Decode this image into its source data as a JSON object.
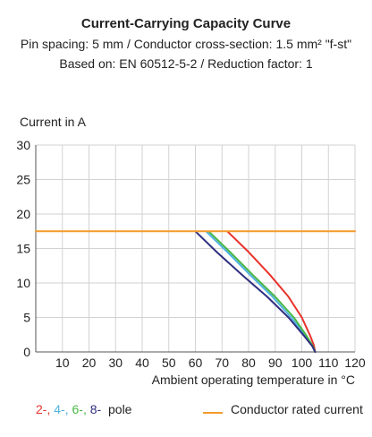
{
  "chart_data": {
    "type": "line",
    "title": "Current-Carrying Capacity Curve",
    "subtitle_1": "Pin spacing: 5 mm / Conductor cross-section: 1.5 mm² \"f-st\"",
    "subtitle_2": "Based on: EN 60512-5-2 / Reduction factor: 1",
    "ylabel": "Current in A",
    "xlabel": "Ambient operating temperature in °C",
    "xlim": [
      0,
      120
    ],
    "ylim": [
      0,
      30
    ],
    "xticks": [
      10,
      20,
      30,
      40,
      50,
      60,
      70,
      80,
      90,
      100,
      110,
      120
    ],
    "yticks": [
      0,
      5,
      10,
      15,
      20,
      25,
      30
    ],
    "grid": true,
    "series": [
      {
        "name": "2",
        "color": "#e8322b",
        "x": [
          72,
          80,
          88,
          95,
          100,
          103,
          104.5,
          105
        ],
        "y": [
          17.5,
          14.5,
          11.2,
          8.0,
          5.0,
          2.5,
          1.0,
          0
        ]
      },
      {
        "name": "4",
        "color": "#4fb3e0",
        "x": [
          64,
          72,
          81,
          89,
          96,
          101,
          104,
          105
        ],
        "y": [
          17.5,
          14.5,
          11.0,
          8.0,
          5.0,
          2.5,
          0.8,
          0
        ]
      },
      {
        "name": "6",
        "color": "#4cb845",
        "x": [
          65,
          73,
          82,
          90,
          97,
          101.5,
          104.2,
          105
        ],
        "y": [
          17.5,
          14.5,
          11.0,
          8.0,
          5.0,
          2.5,
          0.8,
          0
        ]
      },
      {
        "name": "8",
        "color": "#2e2f7f",
        "x": [
          60,
          68,
          78,
          87,
          95,
          100.5,
          104,
          105
        ],
        "y": [
          17.5,
          14.5,
          11.0,
          8.0,
          5.0,
          2.5,
          0.8,
          0
        ]
      },
      {
        "name": "Conductor rated current",
        "color": "#f39b2b",
        "x": [
          0,
          120
        ],
        "y": [
          17.5,
          17.5
        ]
      }
    ]
  },
  "legend": {
    "pole_numbers": [
      {
        "text": "2",
        "color": "#e8322b"
      },
      {
        "text": "4",
        "color": "#4fb3e0"
      },
      {
        "text": "6",
        "color": "#4cb845"
      },
      {
        "text": "8",
        "color": "#2e2f7f"
      }
    ],
    "pole_label": "pole",
    "rated_label": "Conductor rated current",
    "rated_color": "#f39b2b"
  }
}
